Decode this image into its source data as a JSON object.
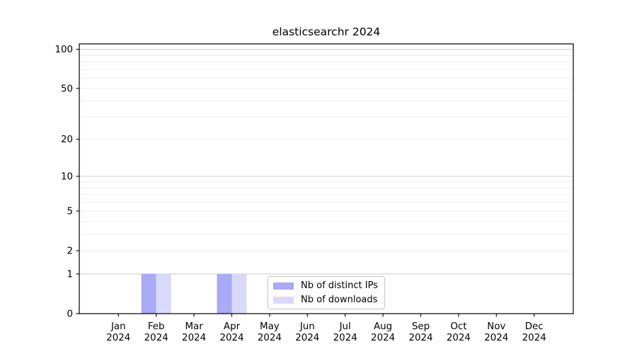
{
  "figure": {
    "background": "#ffffff"
  },
  "chart_data": {
    "type": "bar",
    "title": "elasticsearchr 2024",
    "categories": [
      "Jan",
      "Feb",
      "Mar",
      "Apr",
      "May",
      "Jun",
      "Jul",
      "Aug",
      "Sep",
      "Oct",
      "Nov",
      "Dec"
    ],
    "year": "2024",
    "series": [
      {
        "name": "Nb of distinct IPs",
        "color": "#a9a9f5",
        "values": [
          0,
          1,
          0,
          1,
          0,
          0,
          0,
          0,
          0,
          0,
          0,
          0
        ]
      },
      {
        "name": "Nb of downloads",
        "color": "#d9d9fa",
        "values": [
          0,
          1,
          0,
          1,
          0,
          0,
          0,
          0,
          0,
          0,
          0,
          0
        ]
      }
    ],
    "xlabel": "",
    "ylabel": "",
    "y_axis": {
      "scale": "log1p",
      "ymin": 0,
      "ymax": 110,
      "ticks": [
        {
          "value": 0,
          "label": "0"
        },
        {
          "value": 1,
          "label": "1"
        },
        {
          "value": 2,
          "label": "2"
        },
        {
          "value": 5,
          "label": "5"
        },
        {
          "value": 10,
          "label": "10"
        },
        {
          "value": 20,
          "label": "20"
        },
        {
          "value": 50,
          "label": "50"
        },
        {
          "value": 100,
          "label": "100"
        }
      ],
      "major_gridlines": [
        1,
        10,
        100
      ],
      "minor_gridlines": [
        2,
        3,
        4,
        5,
        6,
        7,
        8,
        9,
        20,
        30,
        40,
        50,
        60,
        70,
        80,
        90
      ]
    },
    "grid": true,
    "legend_position": "lower center"
  },
  "colors": {
    "axis": "#000000",
    "tick_text": "#000000",
    "major_grid": "#d2d2d2",
    "minor_grid": "#ededed",
    "legend_border": "#c4c4c4"
  }
}
